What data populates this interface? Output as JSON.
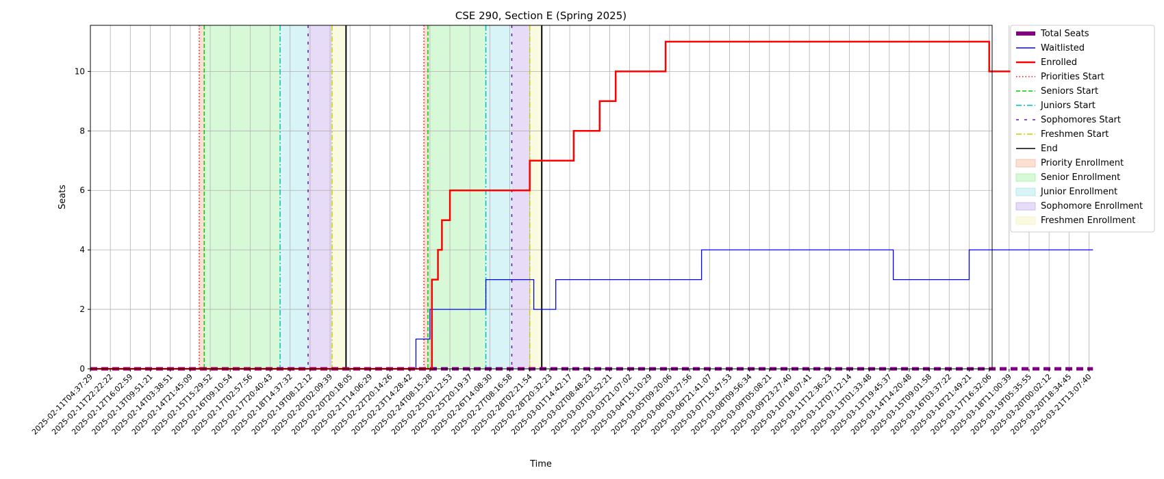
{
  "chart_data": {
    "type": "line",
    "title": "CSE 290, Section E (Spring 2025)",
    "xlabel": "Time",
    "ylabel": "Seats",
    "ylim": [
      0,
      11.55
    ],
    "yticks": [
      0,
      2,
      4,
      6,
      8,
      10
    ],
    "grid": true,
    "legend_position": "outside-right",
    "x_tick_labels": [
      "2025-02-11T04:37:29",
      "2025-02-11T22:22:22",
      "2025-02-12T16:02:59",
      "2025-02-13T09:51:21",
      "2025-02-14T03:38:51",
      "2025-02-14T21:45:09",
      "2025-02-15T15:29:52",
      "2025-02-16T09:10:54",
      "2025-02-17T02:57:56",
      "2025-02-17T20:40:43",
      "2025-02-18T14:37:32",
      "2025-02-19T08:12:12",
      "2025-02-20T02:09:39",
      "2025-02-20T20:18:05",
      "2025-02-21T14:06:29",
      "2025-02-22T20:14:26",
      "2025-02-23T14:28:42",
      "2025-02-24T08:15:28",
      "2025-02-25T02:12:53",
      "2025-02-25T20:19:37",
      "2025-02-26T14:08:30",
      "2025-02-27T08:16:58",
      "2025-02-28T02:21:54",
      "2025-02-28T20:32:23",
      "2025-03-01T14:42:17",
      "2025-03-02T08:48:23",
      "2025-03-03T02:52:21",
      "2025-03-03T21:07:02",
      "2025-03-04T15:10:29",
      "2025-03-05T09:20:06",
      "2025-03-06T03:27:56",
      "2025-03-06T21:41:07",
      "2025-03-07T15:47:53",
      "2025-03-08T09:56:34",
      "2025-03-09T05:08:21",
      "2025-03-09T23:27:40",
      "2025-03-10T18:07:41",
      "2025-03-11T12:36:23",
      "2025-03-12T07:12:14",
      "2025-03-13T01:33:48",
      "2025-03-13T19:45:37",
      "2025-03-14T14:20:48",
      "2025-03-15T09:01:58",
      "2025-03-16T03:37:22",
      "2025-03-16T21:49:21",
      "2025-03-17T16:32:06",
      "2025-03-18T11:00:39",
      "2025-03-19T05:35:55",
      "2025-03-20T00:02:12",
      "2025-03-20T18:34:45",
      "2025-03-21T13:07:40"
    ],
    "x_range_index": [
      0,
      50.2
    ],
    "series": [
      {
        "name": "Total Seats",
        "color": "#800080",
        "style": "dashed-thick",
        "points": [
          [
            0,
            0
          ],
          [
            50.2,
            0
          ]
        ]
      },
      {
        "name": "Waitlisted",
        "color": "#0000ff",
        "style": "solid",
        "points": [
          [
            0,
            0
          ],
          [
            16.3,
            0
          ],
          [
            16.3,
            1
          ],
          [
            17.0,
            1
          ],
          [
            17.0,
            2
          ],
          [
            19.8,
            2
          ],
          [
            19.8,
            3
          ],
          [
            22.2,
            3
          ],
          [
            22.2,
            2
          ],
          [
            23.3,
            2
          ],
          [
            23.3,
            3
          ],
          [
            30.6,
            3
          ],
          [
            30.6,
            4
          ],
          [
            40.2,
            4
          ],
          [
            40.2,
            3
          ],
          [
            44.0,
            3
          ],
          [
            44.0,
            4
          ],
          [
            50.2,
            4
          ]
        ]
      },
      {
        "name": "Enrolled",
        "color": "#ff0000",
        "style": "solid-thick",
        "points": [
          [
            0,
            0
          ],
          [
            17.1,
            0
          ],
          [
            17.1,
            3
          ],
          [
            17.4,
            3
          ],
          [
            17.4,
            4
          ],
          [
            17.6,
            4
          ],
          [
            17.6,
            5
          ],
          [
            18.0,
            5
          ],
          [
            18.0,
            6
          ],
          [
            22.0,
            6
          ],
          [
            22.0,
            7
          ],
          [
            24.2,
            7
          ],
          [
            24.2,
            8
          ],
          [
            25.5,
            8
          ],
          [
            25.5,
            9
          ],
          [
            26.3,
            9
          ],
          [
            26.3,
            10
          ],
          [
            28.8,
            10
          ],
          [
            28.8,
            11
          ],
          [
            45.0,
            11
          ],
          [
            45.0,
            10
          ],
          [
            50.2,
            10
          ]
        ]
      }
    ],
    "markers": [
      {
        "name": "Priorities Start",
        "color": "#ff0000",
        "style": "dotted",
        "x": [
          5.45,
          16.7
        ]
      },
      {
        "name": "Seniors Start",
        "color": "#00cc00",
        "style": "dashed",
        "x": [
          5.7,
          16.9
        ]
      },
      {
        "name": "Juniors Start",
        "color": "#00bfbf",
        "style": "dashdot",
        "x": [
          9.5,
          19.8
        ]
      },
      {
        "name": "Sophomores Start",
        "color": "#6a0dad",
        "style": "loosedash",
        "x": [
          10.9,
          21.1
        ]
      },
      {
        "name": "Freshmen Start",
        "color": "#cccc00",
        "style": "dashdot",
        "x": [
          12.1,
          22.0
        ]
      },
      {
        "name": "End",
        "color": "#000000",
        "style": "solid",
        "x": [
          12.8,
          22.6
        ]
      }
    ],
    "regions": [
      {
        "name": "Priority Enrollment",
        "color": "#f4a582",
        "spans": [
          [
            5.45,
            5.7
          ],
          [
            16.7,
            16.9
          ]
        ]
      },
      {
        "name": "Senior Enrollment",
        "color": "#90ee90",
        "spans": [
          [
            5.7,
            9.5
          ],
          [
            16.9,
            19.8
          ]
        ]
      },
      {
        "name": "Junior Enrollment",
        "color": "#90e0e8",
        "spans": [
          [
            9.5,
            10.9
          ],
          [
            19.8,
            21.1
          ]
        ]
      },
      {
        "name": "Sophomore Enrollment",
        "color": "#b89be8",
        "spans": [
          [
            10.9,
            12.1
          ],
          [
            21.1,
            22.0
          ]
        ]
      },
      {
        "name": "Freshmen Enrollment",
        "color": "#f0f0a8",
        "spans": [
          [
            12.1,
            12.8
          ],
          [
            22.0,
            22.6
          ]
        ]
      }
    ],
    "legend": [
      {
        "label": "Total Seats",
        "kind": "line",
        "color": "#800080",
        "style": "thick"
      },
      {
        "label": "Waitlisted",
        "kind": "line",
        "color": "#0000ff",
        "style": "solid"
      },
      {
        "label": "Enrolled",
        "kind": "line",
        "color": "#ff0000",
        "style": "solid-thick"
      },
      {
        "label": "Priorities Start",
        "kind": "line",
        "color": "#ff0000",
        "style": "dotted"
      },
      {
        "label": "Seniors Start",
        "kind": "line",
        "color": "#00cc00",
        "style": "dashed"
      },
      {
        "label": "Juniors Start",
        "kind": "line",
        "color": "#00bfbf",
        "style": "dashdot"
      },
      {
        "label": "Sophomores Start",
        "kind": "line",
        "color": "#6a0dad",
        "style": "loosedash"
      },
      {
        "label": "Freshmen Start",
        "kind": "line",
        "color": "#cccc00",
        "style": "dashdot"
      },
      {
        "label": "End",
        "kind": "line",
        "color": "#000000",
        "style": "solid"
      },
      {
        "label": "Priority Enrollment",
        "kind": "patch",
        "color": "#f4a582"
      },
      {
        "label": "Senior Enrollment",
        "kind": "patch",
        "color": "#90ee90"
      },
      {
        "label": "Junior Enrollment",
        "kind": "patch",
        "color": "#90e0e8"
      },
      {
        "label": "Sophomore Enrollment",
        "kind": "patch",
        "color": "#b89be8"
      },
      {
        "label": "Freshmen Enrollment",
        "kind": "patch",
        "color": "#f0f0a8"
      }
    ]
  }
}
